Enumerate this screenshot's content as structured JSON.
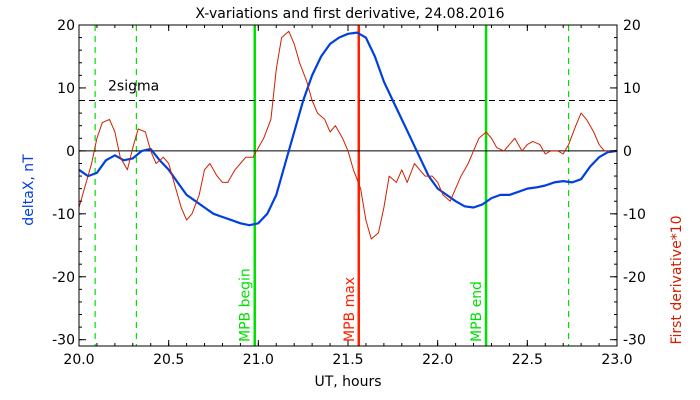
{
  "chart_data": {
    "type": "line",
    "title": "X-variations and first derivative, 24.08.2016",
    "xlabel": "UT, hours",
    "ylabel_left": "deltaX, nT",
    "ylabel_right": "First derivative*10",
    "xlim": [
      20.0,
      23.0
    ],
    "ylim": [
      -31,
      20
    ],
    "x_ticks": [
      20.0,
      20.5,
      21.0,
      21.5,
      22.0,
      22.5,
      23.0
    ],
    "x_tick_labels": [
      "20.0",
      "20.5",
      "21.0",
      "21.5",
      "22.0",
      "22.5",
      "23.0"
    ],
    "y_ticks": [
      -30,
      -20,
      -10,
      0,
      10,
      20
    ],
    "y_tick_labels": [
      "-30",
      "-20",
      "-10",
      "0",
      "10",
      "20"
    ],
    "colors": {
      "deltaX": "#0040e0",
      "derivative": "#d02000",
      "green": "#00e000",
      "red": "#ff2000"
    },
    "series": [
      {
        "key": "deltaX",
        "x": [
          20.0,
          20.05,
          20.1,
          20.15,
          20.2,
          20.25,
          20.3,
          20.35,
          20.4,
          20.45,
          20.5,
          20.55,
          20.6,
          20.65,
          20.7,
          20.75,
          20.8,
          20.85,
          20.9,
          20.95,
          21.0,
          21.05,
          21.1,
          21.15,
          21.2,
          21.25,
          21.3,
          21.35,
          21.4,
          21.45,
          21.5,
          21.55,
          21.6,
          21.65,
          21.7,
          21.75,
          21.8,
          21.85,
          21.9,
          21.95,
          22.0,
          22.05,
          22.1,
          22.15,
          22.2,
          22.25,
          22.3,
          22.35,
          22.4,
          22.45,
          22.5,
          22.55,
          22.6,
          22.65,
          22.7,
          22.75,
          22.8,
          22.85,
          22.9,
          22.95,
          23.0
        ],
        "y": [
          -3,
          -4,
          -3.5,
          -1.5,
          -0.7,
          -1.5,
          -1.2,
          0,
          0.3,
          -1.5,
          -3,
          -5,
          -7,
          -8,
          -9,
          -10,
          -10.5,
          -11,
          -11.5,
          -11.8,
          -11.5,
          -10,
          -7,
          -2,
          3,
          8,
          12,
          15,
          17,
          18,
          18.6,
          18.8,
          18,
          15,
          11,
          8,
          5,
          2,
          -1,
          -4,
          -6,
          -7,
          -8,
          -8.8,
          -9,
          -8.5,
          -7.5,
          -7,
          -7,
          -6.5,
          -6,
          -5.8,
          -5.5,
          -5,
          -4.8,
          -5,
          -4.5,
          -2.5,
          -1,
          -0.2,
          0
        ]
      },
      {
        "key": "derivative",
        "x": [
          20.0,
          20.03,
          20.07,
          20.1,
          20.13,
          20.17,
          20.2,
          20.23,
          20.27,
          20.3,
          20.33,
          20.37,
          20.4,
          20.43,
          20.47,
          20.5,
          20.53,
          20.57,
          20.6,
          20.63,
          20.67,
          20.7,
          20.73,
          20.77,
          20.8,
          20.83,
          20.87,
          20.9,
          20.93,
          20.97,
          21.0,
          21.03,
          21.07,
          21.1,
          21.13,
          21.17,
          21.2,
          21.23,
          21.27,
          21.3,
          21.33,
          21.37,
          21.4,
          21.43,
          21.47,
          21.5,
          21.53,
          21.57,
          21.6,
          21.63,
          21.67,
          21.7,
          21.73,
          21.77,
          21.8,
          21.83,
          21.87,
          21.9,
          21.93,
          21.97,
          22.0,
          22.03,
          22.07,
          22.1,
          22.13,
          22.17,
          22.2,
          22.23,
          22.27,
          22.3,
          22.33,
          22.37,
          22.4,
          22.43,
          22.47,
          22.5,
          22.53,
          22.57,
          22.6,
          22.63,
          22.67,
          22.7,
          22.73,
          22.77,
          22.8,
          22.83,
          22.87,
          22.9,
          22.93,
          22.97,
          23.0
        ],
        "y": [
          -9,
          -6,
          -2,
          2,
          4.5,
          5,
          3,
          -1,
          -3,
          0.5,
          3.5,
          3,
          0,
          -2,
          -1,
          -2,
          -5,
          -9,
          -11,
          -10,
          -7,
          -3,
          -2,
          -4,
          -5,
          -5,
          -3,
          -2,
          -1,
          -1,
          0.5,
          2,
          5,
          13,
          18,
          19,
          17,
          14,
          11,
          8,
          6,
          5,
          3,
          4,
          2,
          0,
          -3,
          -6,
          -11,
          -14,
          -13,
          -9,
          -4,
          -5,
          -3,
          -5,
          -2,
          -3,
          -4,
          -4,
          -5,
          -7,
          -8,
          -6,
          -4,
          -2,
          0,
          2,
          3,
          2,
          0.5,
          0,
          1,
          2,
          0,
          1,
          1.5,
          1,
          -0.5,
          0,
          0,
          -0.5,
          1,
          4,
          6,
          5,
          3,
          1,
          0,
          0,
          0
        ]
      }
    ],
    "sigma_line": {
      "y": 8,
      "label": "2sigma"
    },
    "zero_line": {
      "y": 0
    },
    "dashed_green_lines": [
      20.09,
      20.32,
      22.73
    ],
    "solid_green_lines": [
      {
        "x": 20.98,
        "label": "MPB begin"
      },
      {
        "x": 22.27,
        "label": "MPB end"
      }
    ],
    "solid_red_lines": [
      {
        "x": 21.56,
        "label": "MPB max"
      }
    ]
  }
}
